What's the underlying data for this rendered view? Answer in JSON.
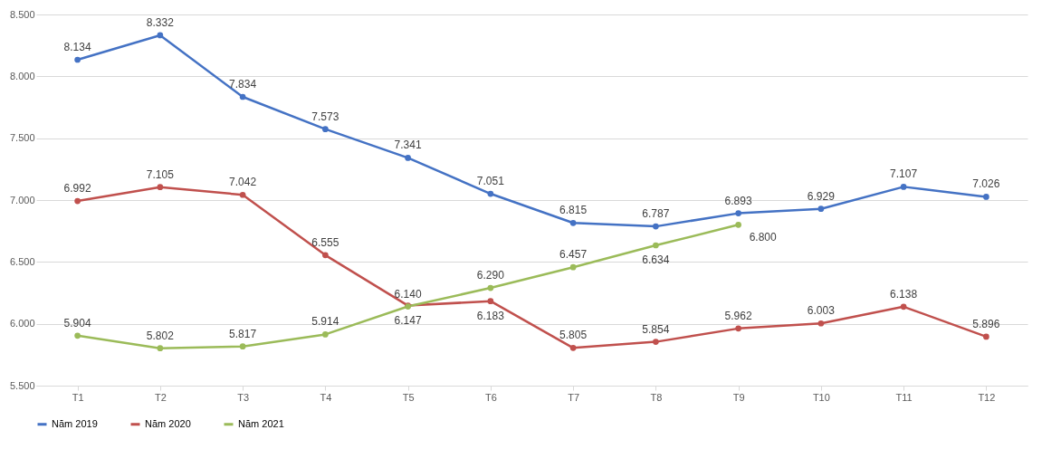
{
  "chart_data": {
    "type": "line",
    "categories": [
      "T1",
      "T2",
      "T3",
      "T4",
      "T5",
      "T6",
      "T7",
      "T8",
      "T9",
      "T10",
      "T11",
      "T12"
    ],
    "series": [
      {
        "name": "Năm 2019",
        "color": "#4472c4",
        "values": [
          8134,
          8332,
          7834,
          7573,
          7341,
          7051,
          6815,
          6787,
          6893,
          6929,
          7107,
          7026
        ],
        "value_labels": [
          "8.134",
          "8.332",
          "7.834",
          "7.573",
          "7.341",
          "7.051",
          "6.815",
          "6.787",
          "6.893",
          "6.929",
          "7.107",
          "7.026"
        ]
      },
      {
        "name": "Năm 2020",
        "color": "#c0504d",
        "values": [
          6992,
          7105,
          7042,
          6555,
          6147,
          6183,
          5805,
          5854,
          5962,
          6003,
          6138,
          5896
        ],
        "value_labels": [
          "6.992",
          "7.105",
          "7.042",
          "6.555",
          "6.147",
          "6.183",
          "5.805",
          "5.854",
          "5.962",
          "6.003",
          "6.138",
          "5.896"
        ]
      },
      {
        "name": "Năm 2021",
        "color": "#9bbb59",
        "values": [
          5904,
          5802,
          5817,
          5914,
          6140,
          6290,
          6457,
          6634,
          6800,
          null,
          null,
          null
        ],
        "value_labels": [
          "5.904",
          "5.802",
          "5.817",
          "5.914",
          "6.140",
          "6.290",
          "6.457",
          "6.634",
          "6.800",
          null,
          null,
          null
        ]
      }
    ],
    "ylim": [
      5500,
      8500
    ],
    "yticks": [
      {
        "value": 5500,
        "label": "5.500"
      },
      {
        "value": 6000,
        "label": "6.000"
      },
      {
        "value": 6500,
        "label": "6.500"
      },
      {
        "value": 7000,
        "label": "7.000"
      },
      {
        "value": 7500,
        "label": "7.500"
      },
      {
        "value": 8000,
        "label": "8.000"
      },
      {
        "value": 8500,
        "label": "8.500"
      }
    ],
    "grid": "y",
    "legend": "bottom",
    "marker": "circle",
    "line_style": "solid"
  }
}
